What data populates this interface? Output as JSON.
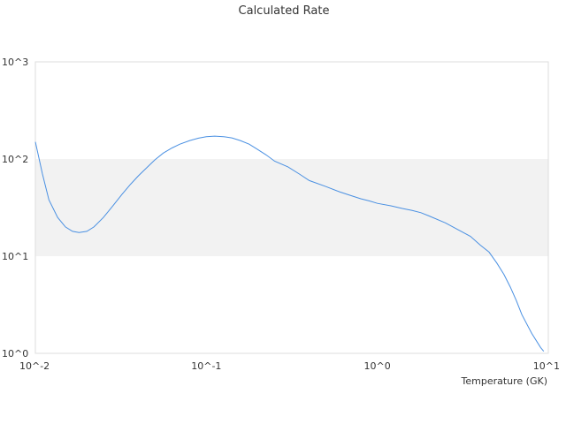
{
  "chart_data": {
    "type": "line",
    "title": "Calculated Rate",
    "xlabel": "Temperature (GK)",
    "ylabel": "",
    "x_scale": "log",
    "y_scale": "log",
    "xlim": [
      0.01,
      10
    ],
    "ylim": [
      1,
      1000
    ],
    "x_tick_values": [
      0.01,
      0.1,
      1,
      10
    ],
    "x_tick_labels": [
      "10^-2",
      "10^-1",
      "10^0",
      "10^1"
    ],
    "y_tick_values": [
      1,
      10,
      100,
      1000
    ],
    "y_tick_labels": [
      "10^0",
      "10^1",
      "10^2",
      "10^3"
    ],
    "grid": false,
    "alternating_bands": true,
    "band_color": "#f2f2f2",
    "line_color": "#4a90e2",
    "series": [
      {
        "x": [
          0.01,
          0.011,
          0.012,
          0.0135,
          0.015,
          0.0165,
          0.018,
          0.02,
          0.022,
          0.025,
          0.028,
          0.032,
          0.036,
          0.04,
          0.045,
          0.05,
          0.056,
          0.063,
          0.07,
          0.08,
          0.09,
          0.1,
          0.112,
          0.126,
          0.141,
          0.158,
          0.178,
          0.2,
          0.224,
          0.251,
          0.3,
          0.35,
          0.4,
          0.5,
          0.6,
          0.7,
          0.8,
          0.9,
          1.0,
          1.2,
          1.4,
          1.6,
          1.8,
          2.0,
          2.5,
          3.0,
          3.5,
          4.0,
          4.5,
          5.0,
          5.5,
          6.0,
          6.5,
          7.0,
          8.0,
          9.0,
          9.4
        ],
        "y": [
          150,
          70,
          38,
          25,
          20,
          18,
          17.5,
          18,
          20,
          25,
          32,
          43,
          55,
          67,
          82,
          98,
          115,
          130,
          142,
          155,
          164,
          170,
          172,
          170,
          165,
          155,
          142,
          125,
          110,
          95,
          83,
          70,
          60,
          52,
          46,
          42,
          39,
          37,
          35,
          33,
          31,
          29.5,
          28,
          26,
          22,
          18.5,
          16,
          13,
          11,
          8.5,
          6.5,
          4.8,
          3.5,
          2.5,
          1.6,
          1.15,
          1.05
        ]
      }
    ]
  }
}
